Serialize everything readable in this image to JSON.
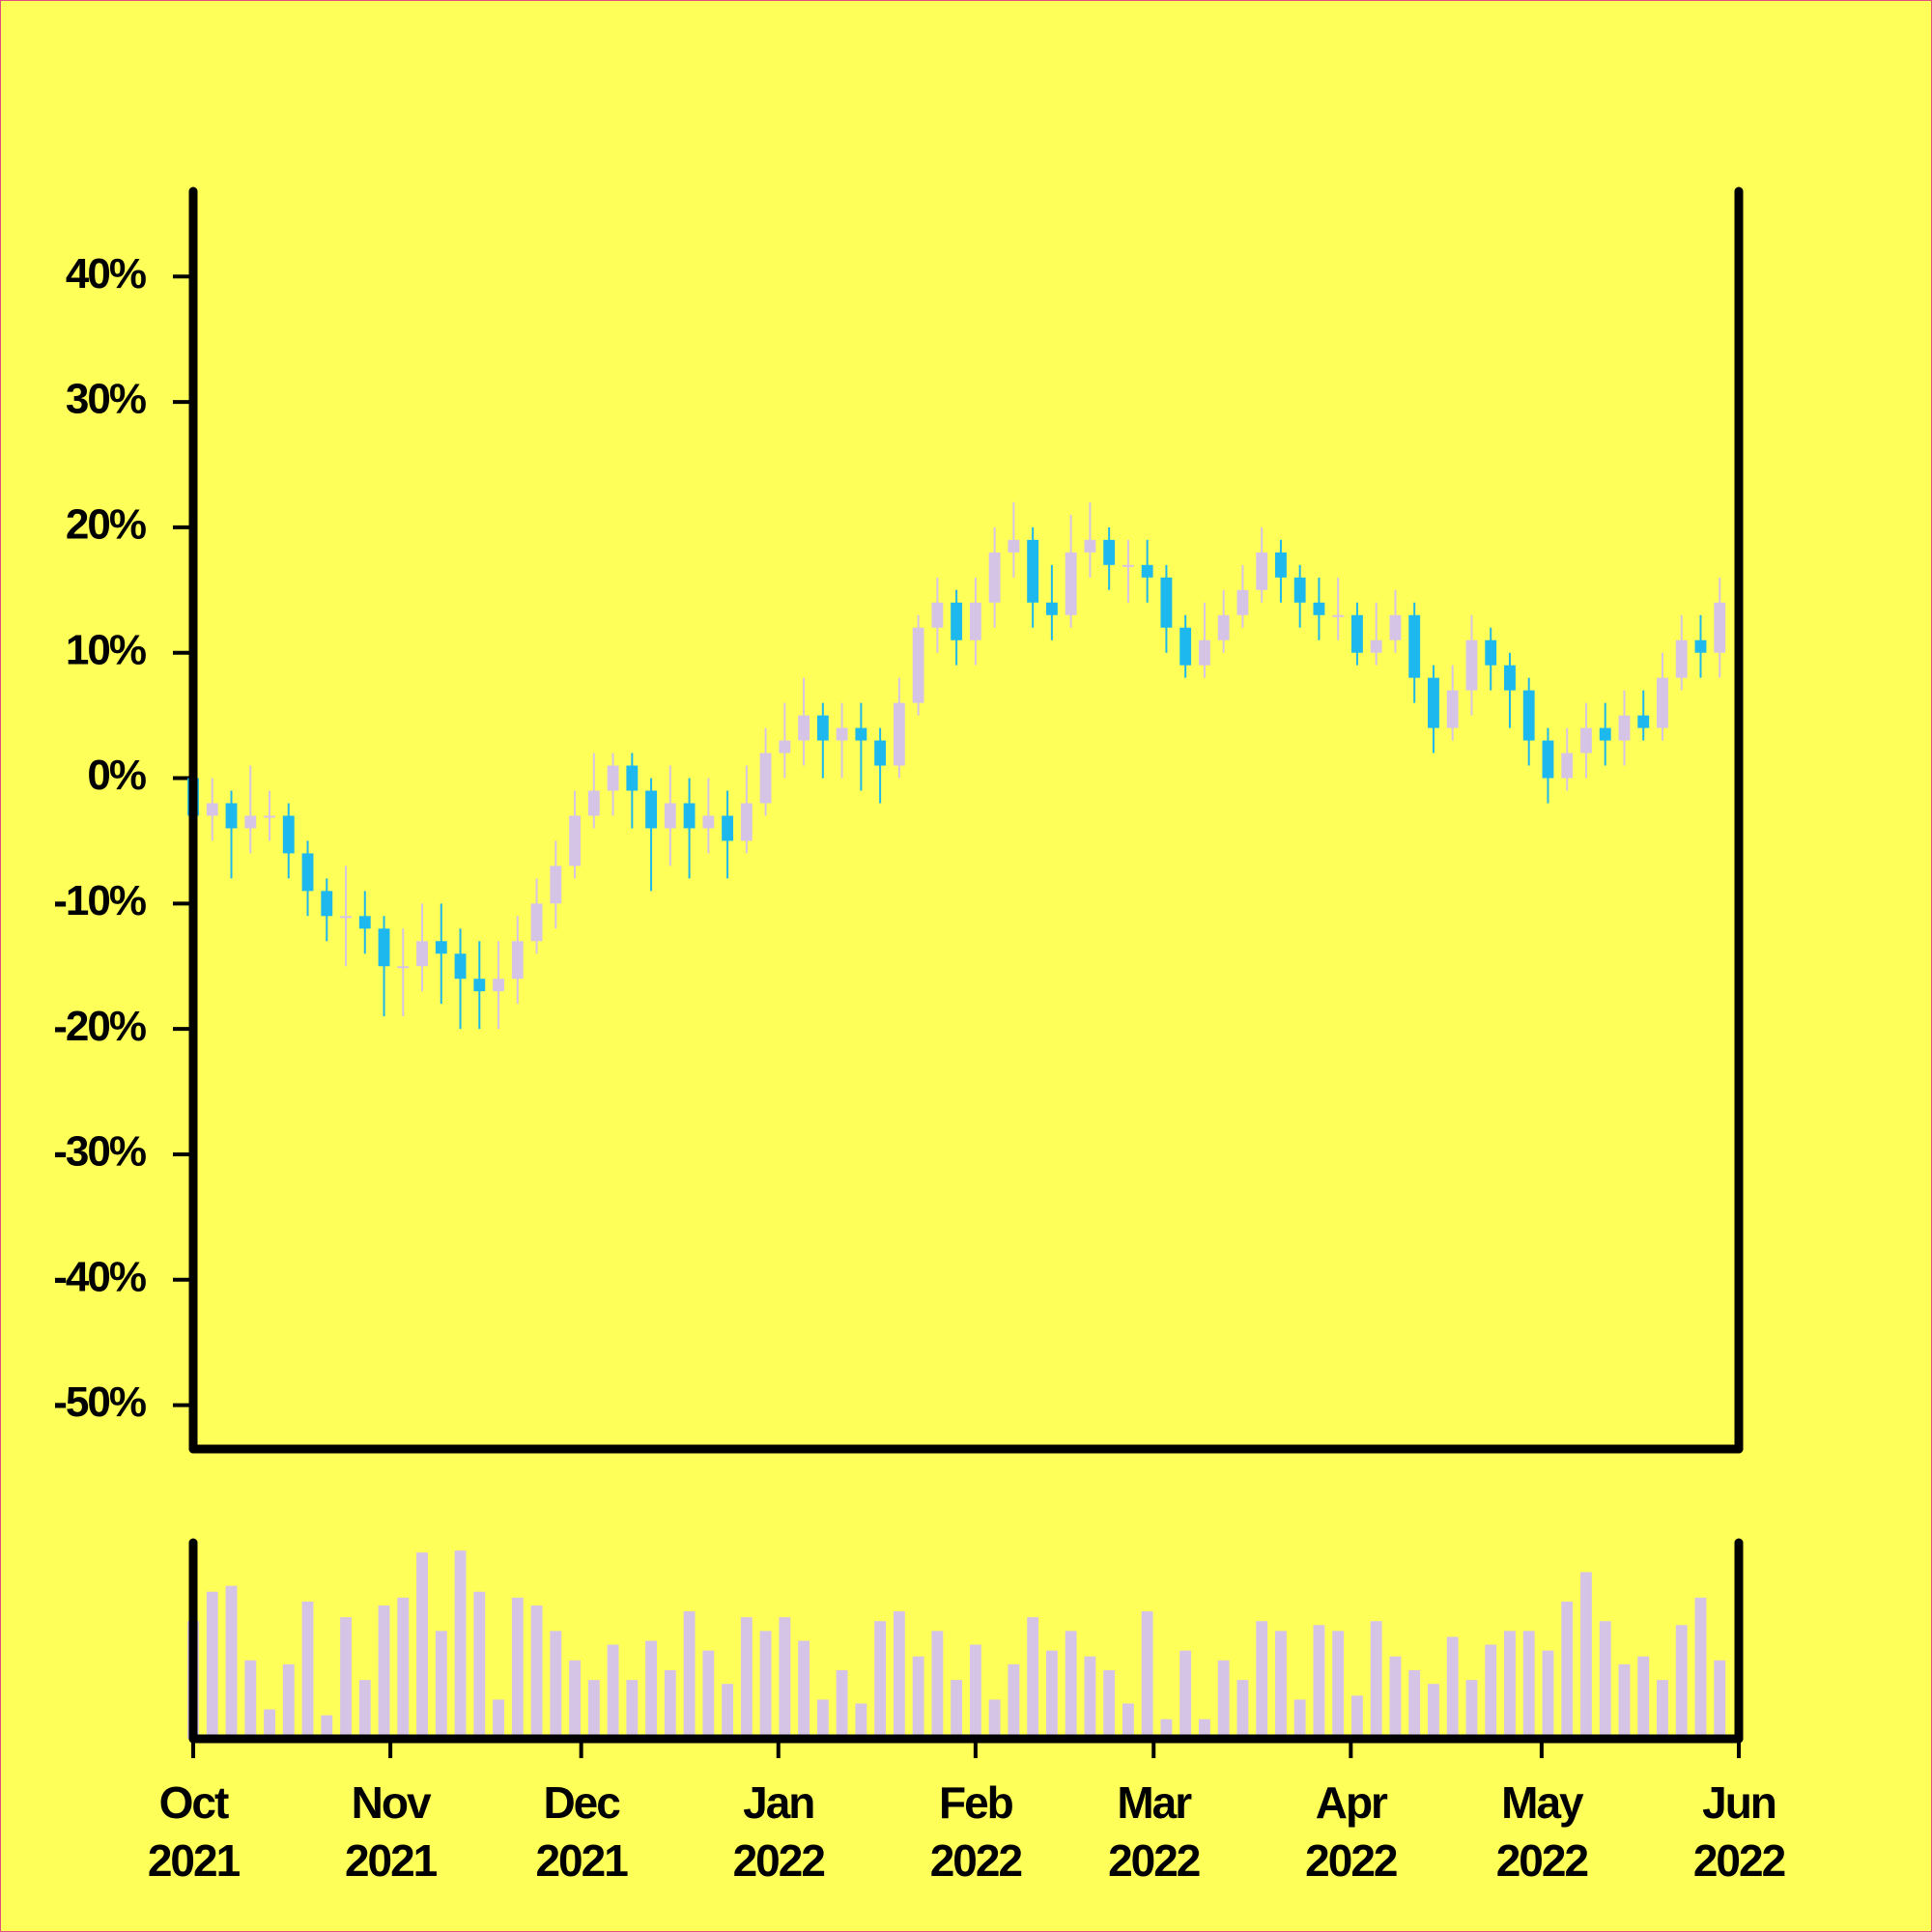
{
  "chart_data": {
    "type": "candlestick",
    "x": [
      0,
      3,
      6,
      9,
      12,
      15,
      18,
      21,
      24,
      27,
      30,
      33,
      36,
      39,
      42,
      45,
      48,
      51,
      54,
      57,
      60,
      63,
      66,
      69,
      72,
      75,
      78,
      81,
      84,
      87,
      90,
      93,
      96,
      99,
      102,
      105,
      108,
      111,
      114,
      117,
      120,
      123,
      126,
      129,
      132,
      135,
      138,
      141,
      144,
      147,
      150,
      153,
      156,
      159,
      162,
      165,
      168,
      171,
      174,
      177,
      180,
      183,
      186,
      189,
      192,
      195,
      198,
      201,
      204,
      207,
      210,
      213,
      216,
      219,
      222,
      225,
      228,
      231,
      234,
      237,
      240
    ],
    "open": [
      0,
      -3,
      -2,
      -4,
      -3,
      -3,
      -6,
      -9,
      -11,
      -11,
      -12,
      -15,
      -15,
      -13,
      -14,
      -16,
      -17,
      -16,
      -13,
      -10,
      -7,
      -3,
      -1,
      1,
      -1,
      -4,
      -2,
      -4,
      -3,
      -5,
      -2,
      2,
      3,
      5,
      3,
      4,
      3,
      1,
      6,
      12,
      14,
      11,
      14,
      18,
      19,
      14,
      13,
      18,
      19,
      17,
      17,
      16,
      12,
      9,
      11,
      13,
      15,
      18,
      16,
      14,
      13,
      13,
      10,
      11,
      13,
      8,
      4,
      7,
      11,
      9,
      7,
      3,
      0,
      2,
      4,
      3,
      5,
      4,
      8,
      11,
      10
    ],
    "high": [
      1,
      0,
      -1,
      1,
      -1,
      -2,
      -5,
      -8,
      -7,
      -9,
      -11,
      -12,
      -10,
      -10,
      -12,
      -13,
      -13,
      -11,
      -8,
      -5,
      -1,
      2,
      2,
      2,
      0,
      1,
      0,
      0,
      -1,
      1,
      4,
      6,
      8,
      6,
      6,
      6,
      4,
      8,
      13,
      16,
      15,
      16,
      20,
      22,
      20,
      17,
      21,
      22,
      20,
      19,
      19,
      17,
      13,
      14,
      15,
      17,
      20,
      19,
      17,
      16,
      16,
      14,
      14,
      15,
      14,
      9,
      9,
      13,
      12,
      10,
      8,
      4,
      4,
      6,
      6,
      7,
      7,
      10,
      13,
      13,
      16
    ],
    "low": [
      -5,
      -5,
      -8,
      -6,
      -5,
      -8,
      -11,
      -13,
      -15,
      -14,
      -19,
      -19,
      -17,
      -18,
      -20,
      -20,
      -20,
      -18,
      -14,
      -12,
      -8,
      -4,
      -3,
      -4,
      -9,
      -7,
      -8,
      -6,
      -8,
      -6,
      -3,
      0,
      1,
      0,
      0,
      -1,
      -2,
      0,
      5,
      10,
      9,
      9,
      12,
      16,
      12,
      11,
      12,
      16,
      15,
      14,
      14,
      10,
      8,
      8,
      10,
      12,
      14,
      14,
      12,
      11,
      11,
      9,
      9,
      10,
      6,
      2,
      3,
      5,
      7,
      4,
      1,
      -2,
      -1,
      0,
      1,
      1,
      3,
      3,
      7,
      8,
      8
    ],
    "close": [
      -3,
      -2,
      -4,
      -3,
      -3,
      -6,
      -9,
      -11,
      -11,
      -12,
      -15,
      -15,
      -13,
      -14,
      -16,
      -17,
      -16,
      -13,
      -10,
      -7,
      -3,
      -1,
      1,
      -1,
      -4,
      -2,
      -4,
      -3,
      -5,
      -2,
      2,
      3,
      5,
      3,
      4,
      3,
      1,
      6,
      12,
      14,
      11,
      14,
      18,
      19,
      14,
      13,
      18,
      19,
      17,
      17,
      16,
      12,
      9,
      11,
      13,
      15,
      18,
      16,
      14,
      13,
      13,
      10,
      11,
      13,
      8,
      4,
      7,
      11,
      9,
      7,
      3,
      0,
      2,
      4,
      3,
      5,
      4,
      8,
      11,
      10,
      14
    ],
    "volume": [
      60,
      75,
      78,
      40,
      15,
      38,
      70,
      12,
      62,
      30,
      68,
      72,
      95,
      55,
      96,
      75,
      20,
      72,
      68,
      55,
      40,
      30,
      48,
      30,
      50,
      35,
      65,
      45,
      28,
      62,
      55,
      62,
      50,
      20,
      35,
      18,
      60,
      65,
      42,
      55,
      30,
      48,
      20,
      38,
      62,
      45,
      55,
      42,
      35,
      18,
      65,
      10,
      45,
      10,
      40,
      30,
      60,
      55,
      20,
      58,
      55,
      22,
      60,
      42,
      35,
      28,
      52,
      30,
      48,
      55,
      55,
      45,
      70,
      85,
      60,
      38,
      42,
      30,
      58,
      72,
      40
    ],
    "xlim": [
      0,
      243
    ],
    "xticks": [
      {
        "value": 0,
        "label": "Oct 2021"
      },
      {
        "value": 31,
        "label": "Nov 2021"
      },
      {
        "value": 61,
        "label": "Dec 2021"
      },
      {
        "value": 92,
        "label": "Jan 2022"
      },
      {
        "value": 123,
        "label": "Feb 2022"
      },
      {
        "value": 151,
        "label": "Mar 2022"
      },
      {
        "value": 182,
        "label": "Apr 2022"
      },
      {
        "value": 212,
        "label": "May 2022"
      },
      {
        "value": 243,
        "label": "Jun 2022"
      }
    ],
    "ylim": [
      -53.5,
      46.8
    ],
    "yticks": [
      {
        "value": 40,
        "label": "40%"
      },
      {
        "value": 30,
        "label": "30%"
      },
      {
        "value": 20,
        "label": "20%"
      },
      {
        "value": 10,
        "label": "10%"
      },
      {
        "value": 0,
        "label": "0%"
      },
      {
        "value": -10,
        "label": "-10%"
      },
      {
        "value": -20,
        "label": "-20%"
      },
      {
        "value": -30,
        "label": "-30%"
      },
      {
        "value": -40,
        "label": "-40%"
      },
      {
        "value": -50,
        "label": "-50%"
      }
    ],
    "volume_ylim": [
      0,
      100
    ],
    "up_color": "#d6c4e6",
    "down_color": "#1cb8ee",
    "volume_color": "#d6c4e6"
  }
}
